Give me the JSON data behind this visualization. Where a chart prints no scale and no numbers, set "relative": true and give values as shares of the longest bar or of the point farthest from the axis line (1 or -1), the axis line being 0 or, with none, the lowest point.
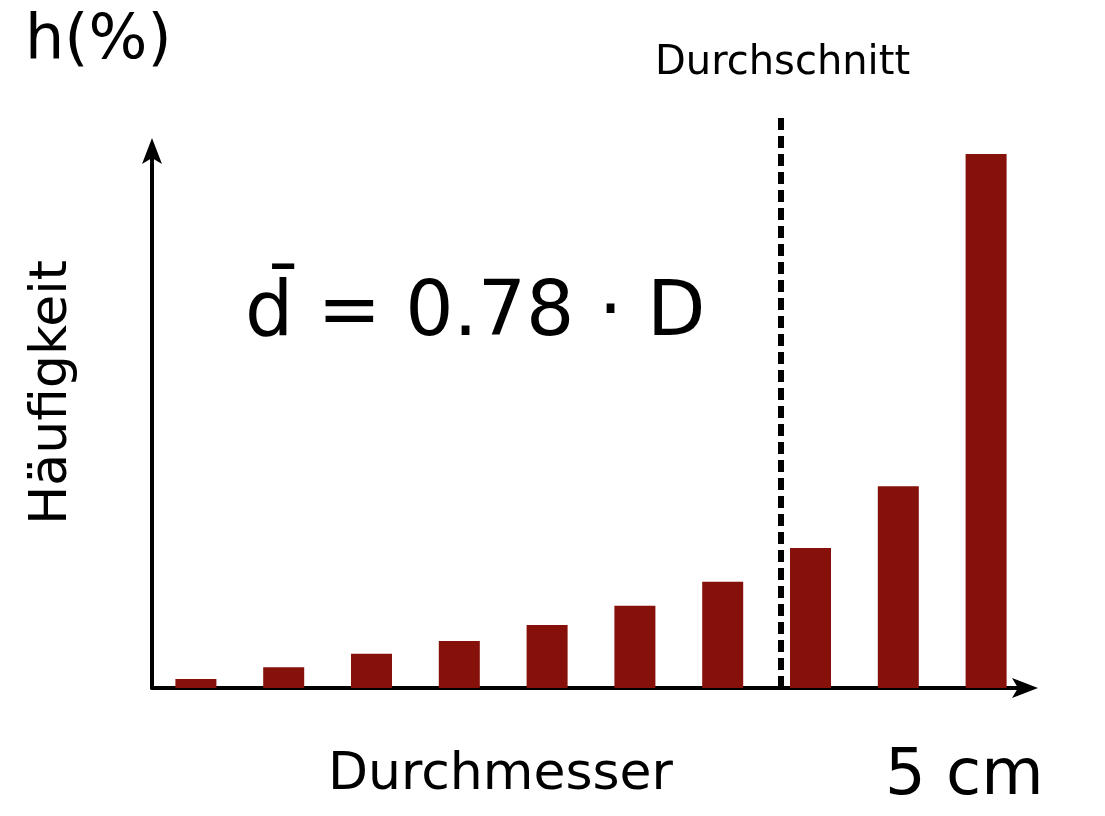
{
  "chart_data": {
    "type": "bar",
    "relative": true,
    "xlabel": "Durchmesser",
    "ylabel": "Häufigkeit",
    "categories": [
      null,
      null,
      null,
      null,
      null,
      null,
      null,
      null,
      null,
      null
    ],
    "values": [
      0.017,
      0.039,
      0.064,
      0.088,
      0.118,
      0.154,
      0.199,
      0.262,
      0.378,
      1
    ],
    "color": "#85110a",
    "grid": false,
    "annotations": [
      "h(%)",
      "d̄ = 0.78 · D",
      "5 cm",
      "Durchschnitt"
    ]
  }
}
